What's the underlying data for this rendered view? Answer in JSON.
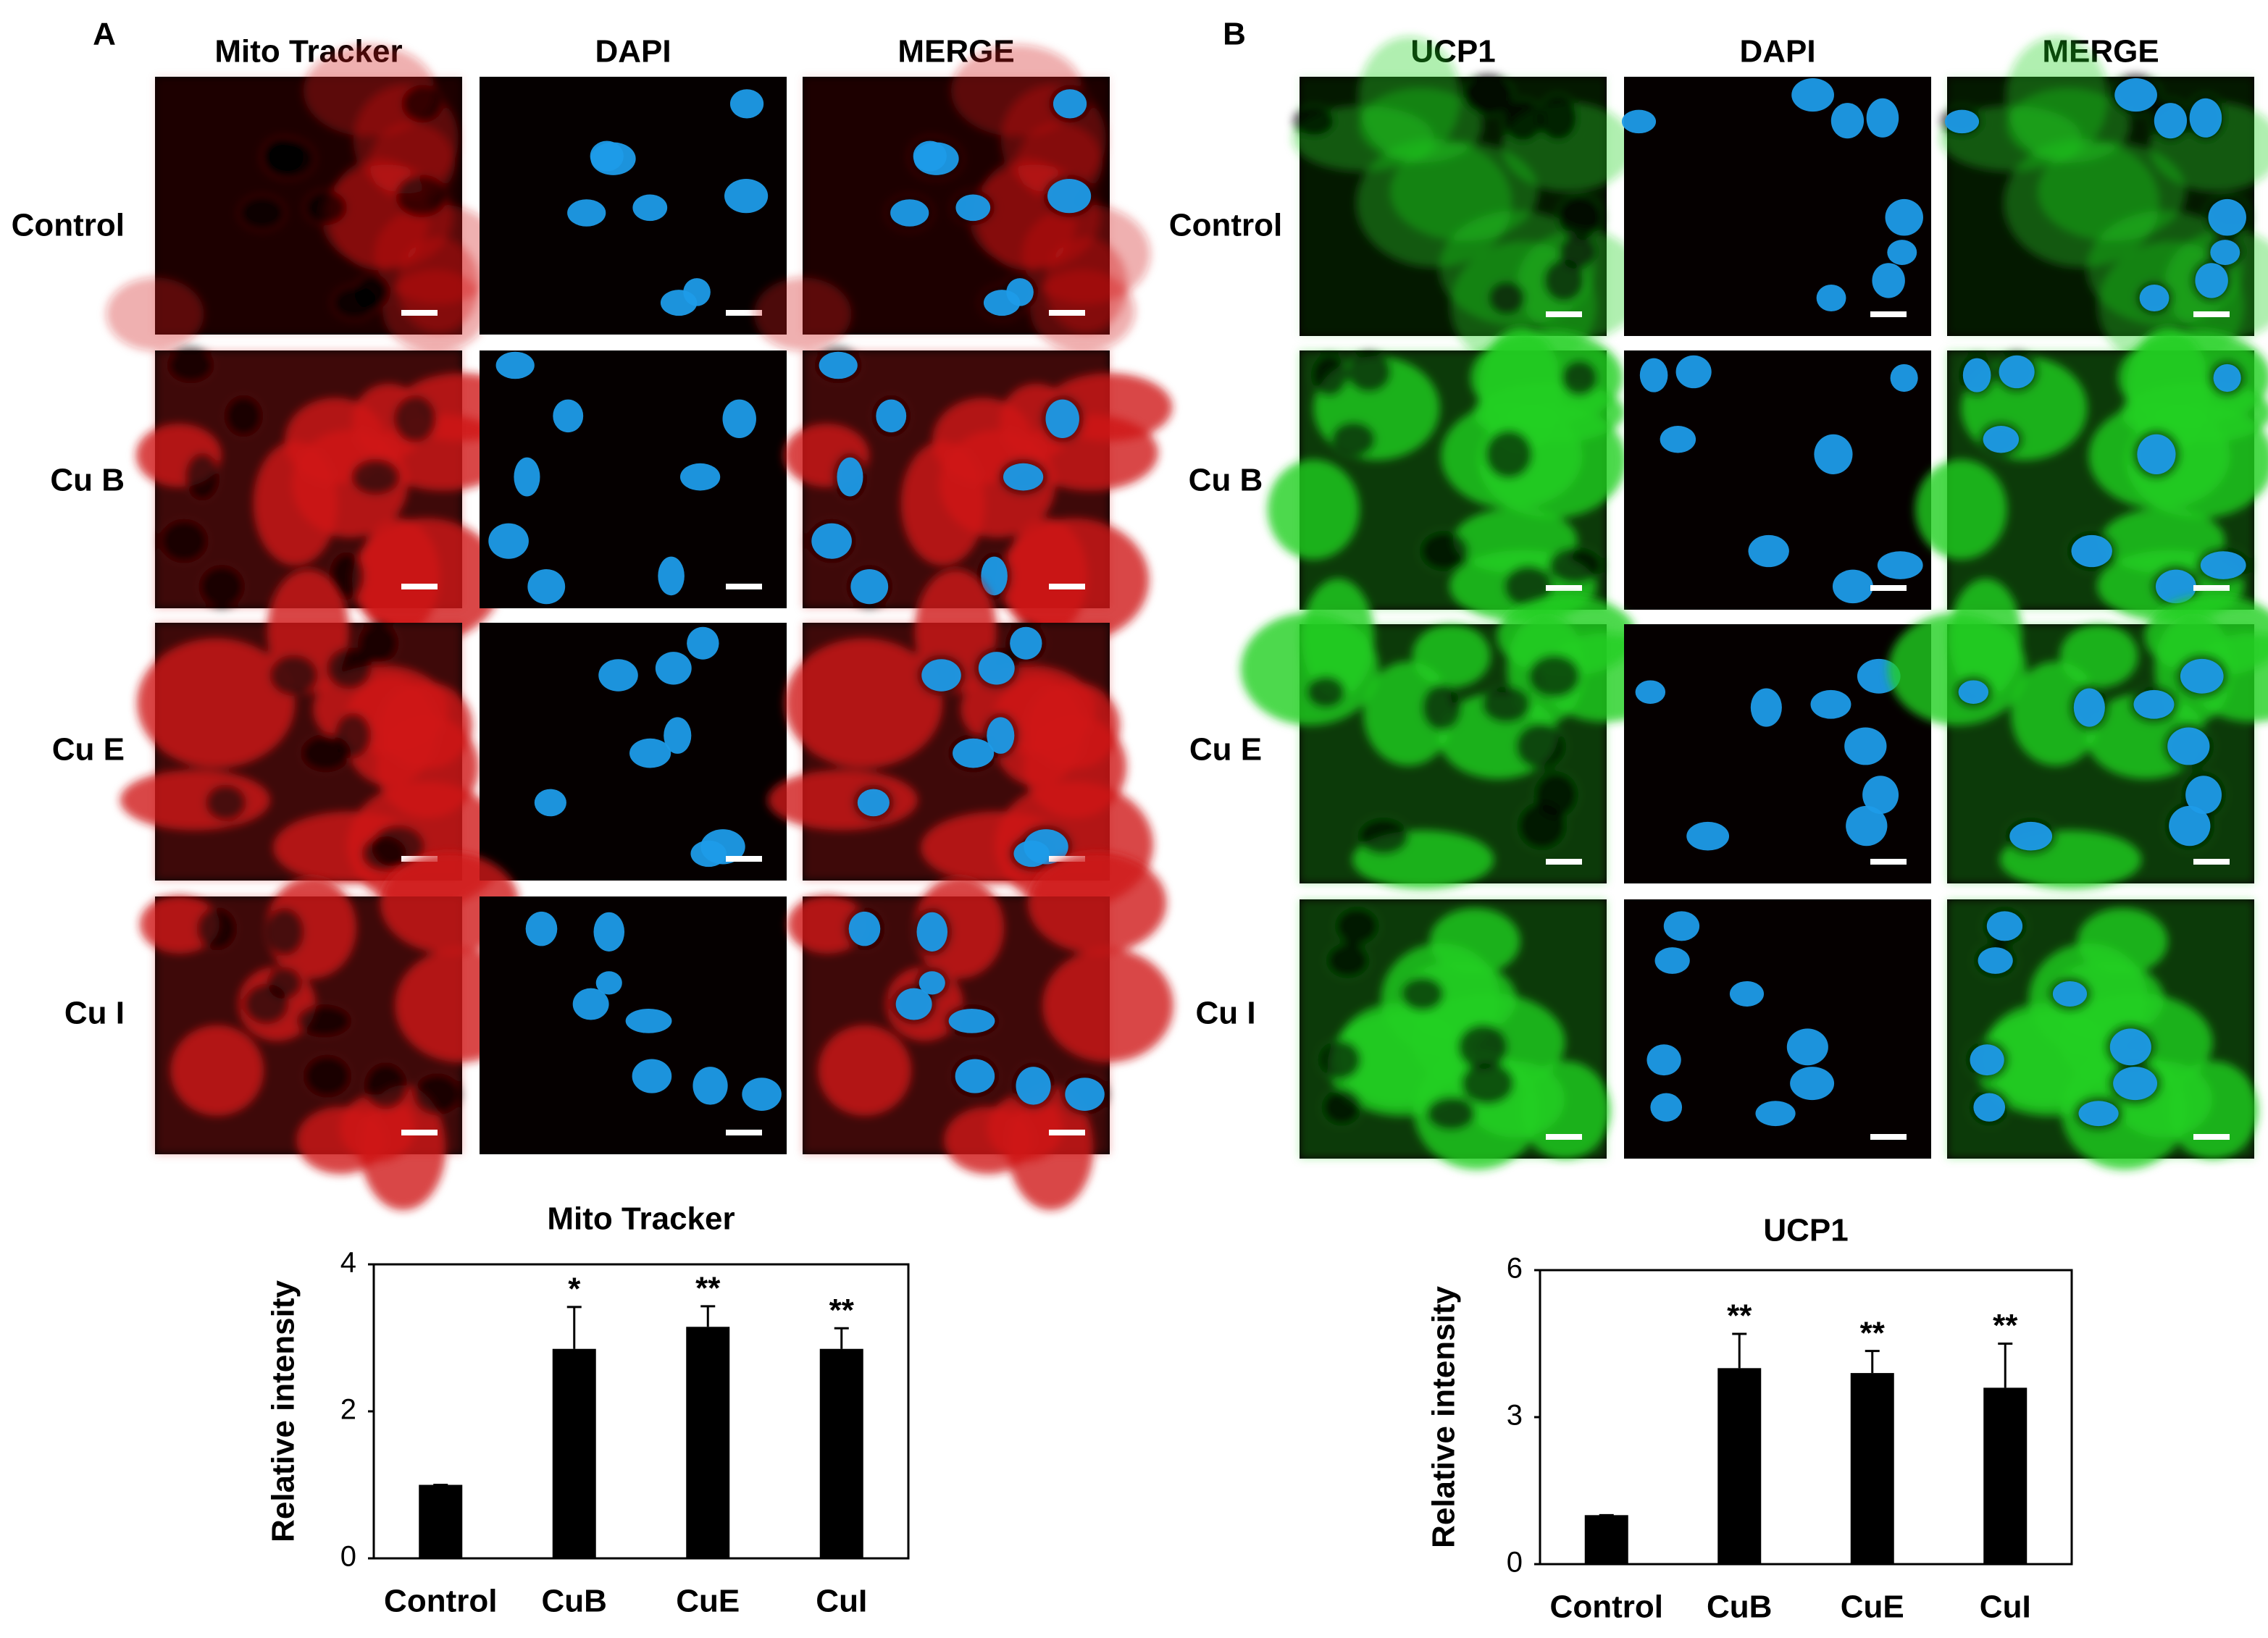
{
  "panels": [
    {
      "label": "A",
      "columns": [
        "Mito Tracker",
        "DAPI",
        "MERGE"
      ],
      "rows": [
        "Control",
        "Cu B",
        "Cu E",
        "Cu I"
      ]
    },
    {
      "label": "B",
      "columns": [
        "UCP1",
        "DAPI",
        "MERGE"
      ],
      "rows": [
        "Control",
        "Cu B",
        "Cu E",
        "Cu I"
      ]
    }
  ],
  "chart_data": [
    {
      "type": "bar",
      "title": "Mito Tracker",
      "y_label": "Relative intensity",
      "categories": [
        "Control",
        "CuB",
        "CuE",
        "CuI"
      ],
      "values": [
        1,
        2.85,
        3.15,
        2.85
      ],
      "errors": [
        0,
        0.57,
        0.28,
        0.28
      ],
      "significance": [
        null,
        "*",
        "**",
        "**"
      ],
      "color": "#000000",
      "ylim": [
        0,
        4
      ],
      "yticks": [
        0,
        2,
        4
      ]
    },
    {
      "type": "bar",
      "title": "UCP1",
      "y_label": "Relative intensity",
      "categories": [
        "Control",
        "CuB",
        "CuE",
        "CuI"
      ],
      "values": [
        1,
        4.0,
        3.9,
        3.6
      ],
      "errors": [
        0,
        0.7,
        0.45,
        0.9
      ],
      "significance": [
        null,
        "**",
        "**",
        "**"
      ],
      "color": "#000000",
      "ylim": [
        0,
        6
      ],
      "yticks": [
        0,
        3,
        6
      ]
    }
  ]
}
